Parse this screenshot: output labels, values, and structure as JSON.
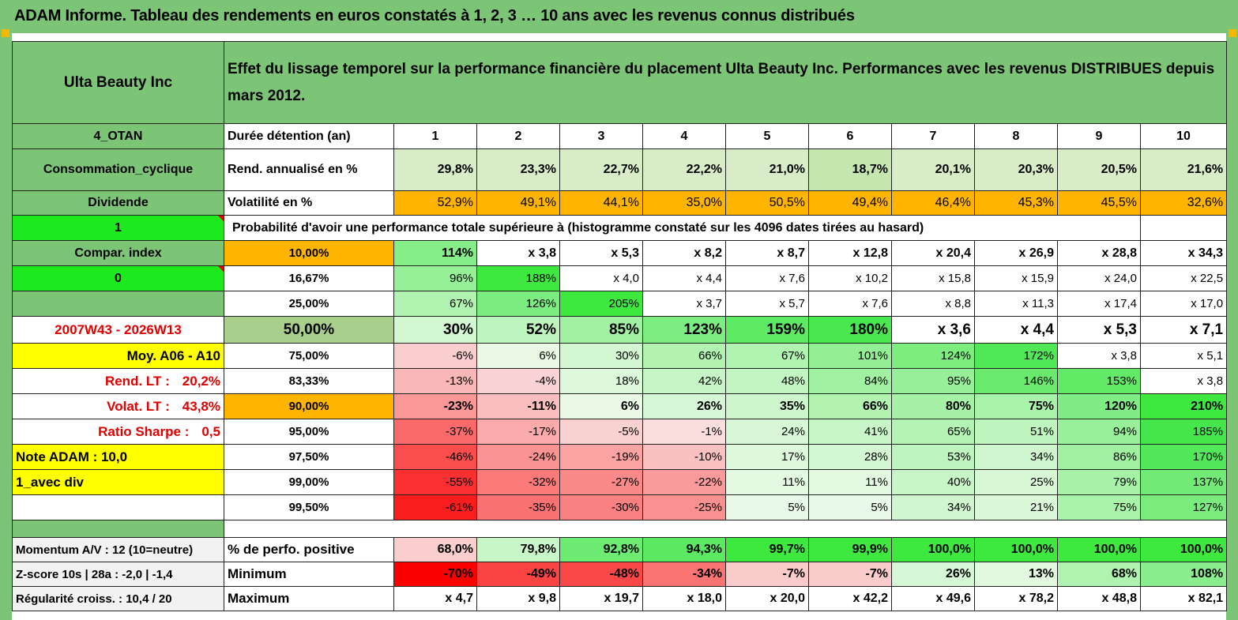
{
  "title": "ADAM Informe. Tableau des rendements en euros constatés à 1, 2, 3 … 10 ans avec les revenus connus distribués",
  "header": {
    "company": "Ulta Beauty Inc",
    "description": "Effet du lissage temporel sur la performance financière du placement Ulta Beauty Inc. Performances avec les revenus DISTRIBUES depuis mars 2012."
  },
  "left_labels": {
    "otan": "4_OTAN",
    "sector": "Consommation_cyclique",
    "dividend": "Dividende",
    "flag1": "1",
    "compar": "Compar. index",
    "flag0": "0",
    "blank": "",
    "period": "2007W43 - 2026W13",
    "moy": "Moy. A06 - A10",
    "rend_label": "Rend. LT :",
    "rend_value": "20,2%",
    "volat_label": "Volat. LT :",
    "volat_value": "43,8%",
    "sharpe_label": "Ratio Sharpe :",
    "sharpe_value": "0,5",
    "note": "Note ADAM : 10,0",
    "div": "1_avec div"
  },
  "holding": {
    "label": "Durée détention (an)",
    "years": [
      "1",
      "2",
      "3",
      "4",
      "5",
      "6",
      "7",
      "8",
      "9",
      "10"
    ]
  },
  "rend": {
    "label": "Rend. annualisé en %",
    "values": [
      "29,8%",
      "23,3%",
      "22,7%",
      "22,2%",
      "21,0%",
      "18,7%",
      "20,1%",
      "20,3%",
      "20,5%",
      "21,6%"
    ]
  },
  "vol": {
    "label": "Volatilité en %",
    "values": [
      "52,9%",
      "49,1%",
      "44,1%",
      "35,0%",
      "50,5%",
      "49,4%",
      "46,4%",
      "45,3%",
      "45,5%",
      "32,6%"
    ]
  },
  "prob_title": "Probabilité d'avoir une performance totale supérieure à (histogramme constaté sur les 4096 dates tirées au hasard)",
  "prob_rows": [
    {
      "pct": "10,00%",
      "values": [
        "114%",
        "x 3,8",
        "x 5,3",
        "x 8,2",
        "x 8,7",
        "x 12,8",
        "x 20,4",
        "x 26,9",
        "x 28,8",
        "x 34,3"
      ]
    },
    {
      "pct": "16,67%",
      "values": [
        "96%",
        "188%",
        "x 4,0",
        "x 4,4",
        "x 7,6",
        "x 10,2",
        "x 15,8",
        "x 15,9",
        "x 24,0",
        "x 22,5"
      ]
    },
    {
      "pct": "25,00%",
      "values": [
        "67%",
        "126%",
        "205%",
        "x 3,7",
        "x 5,7",
        "x 7,6",
        "x 8,8",
        "x 11,3",
        "x 17,4",
        "x 17,0"
      ]
    },
    {
      "pct": "50,00%",
      "values": [
        "30%",
        "52%",
        "85%",
        "123%",
        "159%",
        "180%",
        "x 3,6",
        "x 4,4",
        "x 5,3",
        "x 7,1"
      ]
    },
    {
      "pct": "75,00%",
      "values": [
        "-6%",
        "6%",
        "30%",
        "66%",
        "67%",
        "101%",
        "124%",
        "172%",
        "x 3,8",
        "x 5,1"
      ]
    },
    {
      "pct": "83,33%",
      "values": [
        "-13%",
        "-4%",
        "18%",
        "42%",
        "48%",
        "84%",
        "95%",
        "146%",
        "153%",
        "x 3,8"
      ]
    },
    {
      "pct": "90,00%",
      "values": [
        "-23%",
        "-11%",
        "6%",
        "26%",
        "35%",
        "66%",
        "80%",
        "75%",
        "120%",
        "210%"
      ]
    },
    {
      "pct": "95,00%",
      "values": [
        "-37%",
        "-17%",
        "-5%",
        "-1%",
        "24%",
        "41%",
        "65%",
        "51%",
        "94%",
        "185%"
      ]
    },
    {
      "pct": "97,50%",
      "values": [
        "-46%",
        "-24%",
        "-19%",
        "-10%",
        "17%",
        "28%",
        "53%",
        "34%",
        "86%",
        "170%"
      ]
    },
    {
      "pct": "99,00%",
      "values": [
        "-55%",
        "-32%",
        "-27%",
        "-22%",
        "11%",
        "11%",
        "40%",
        "25%",
        "79%",
        "137%"
      ]
    },
    {
      "pct": "99,50%",
      "values": [
        "-61%",
        "-35%",
        "-30%",
        "-25%",
        "5%",
        "5%",
        "34%",
        "21%",
        "75%",
        "127%"
      ]
    }
  ],
  "stats": [
    {
      "left": "Momentum A/V : 12 (10=neutre)",
      "label": "% de perfo. positive",
      "values": [
        "68,0%",
        "79,8%",
        "92,8%",
        "94,3%",
        "99,7%",
        "99,9%",
        "100,0%",
        "100,0%",
        "100,0%",
        "100,0%"
      ]
    },
    {
      "left": "Z-score 10s | 28a : -2,0 | -1,4",
      "label": "Minimum",
      "values": [
        "-70%",
        "-49%",
        "-48%",
        "-34%",
        "-7%",
        "-7%",
        "26%",
        "13%",
        "68%",
        "108%"
      ]
    },
    {
      "left": "Régularité croiss. : 10,4 / 20",
      "label": "Maximum",
      "values": [
        "x 4,7",
        "x 9,8",
        "x 19,7",
        "x 18,0",
        "x 20,0",
        "x 42,2",
        "x 49,6",
        "x 78,2",
        "x 48,8",
        "x 82,1"
      ]
    }
  ]
}
